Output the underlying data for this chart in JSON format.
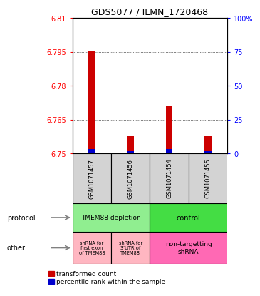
{
  "title": "GDS5077 / ILMN_1720468",
  "samples": [
    "GSM1071457",
    "GSM1071456",
    "GSM1071454",
    "GSM1071455"
  ],
  "red_values": [
    6.795,
    6.758,
    6.771,
    6.758
  ],
  "blue_values": [
    6.752,
    6.751,
    6.752,
    6.751
  ],
  "ylim": [
    6.75,
    6.81
  ],
  "yticks_left": [
    6.75,
    6.765,
    6.78,
    6.795,
    6.81
  ],
  "yticks_right": [
    0,
    25,
    50,
    75,
    100
  ],
  "ytick_labels_right": [
    "0",
    "25",
    "50",
    "75",
    "100%"
  ],
  "grid_values": [
    6.765,
    6.78,
    6.795
  ],
  "red_color": "#CC0000",
  "blue_color": "#0000CC",
  "bar_width": 0.18,
  "sample_box_color": "#D3D3D3",
  "protocol_depletion_color": "#90EE90",
  "protocol_control_color": "#44DD44",
  "other_shrna_color": "#FFB6C1",
  "other_nontarget_color": "#FF69B4",
  "legend_red_label": "transformed count",
  "legend_blue_label": "percentile rank within the sample"
}
